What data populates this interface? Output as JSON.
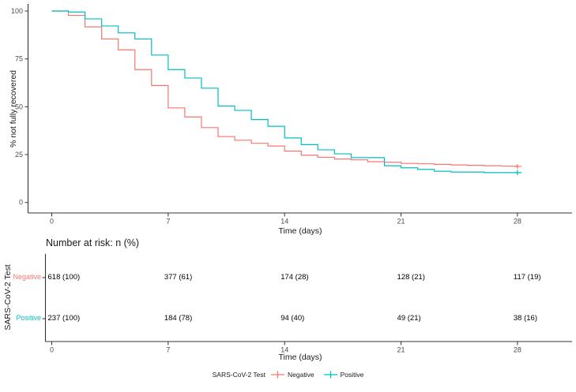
{
  "chart_data": [
    {
      "type": "line",
      "subtype": "kaplan-meier-step",
      "title": "",
      "xlabel": "Time (days)",
      "ylabel": "% not fully recovered",
      "x_ticks": [
        0,
        7,
        14,
        21,
        28
      ],
      "y_ticks": [
        0,
        25,
        50,
        75,
        100
      ],
      "xlim": [
        0,
        31.3
      ],
      "ylim": [
        0,
        100
      ],
      "grid": "off",
      "legend_position": "bottom",
      "series": [
        {
          "name": "Negative",
          "color": "#F8766D",
          "points": [
            [
              0,
              100
            ],
            [
              1,
              97.7
            ],
            [
              2,
              91.7
            ],
            [
              3,
              85.4
            ],
            [
              4,
              79.7
            ],
            [
              5,
              69.4
            ],
            [
              6,
              61.1
            ],
            [
              7,
              49.4
            ],
            [
              8,
              44.7
            ],
            [
              9,
              39.1
            ],
            [
              10,
              34.4
            ],
            [
              11,
              32.5
            ],
            [
              12,
              30.9
            ],
            [
              13,
              29.5
            ],
            [
              14,
              26.8
            ],
            [
              15,
              24.7
            ],
            [
              16,
              23.6
            ],
            [
              17,
              22.7
            ],
            [
              18,
              22.3
            ],
            [
              19,
              21.3
            ],
            [
              20,
              21.0
            ],
            [
              21,
              20.4
            ],
            [
              22,
              20.2
            ],
            [
              23,
              19.9
            ],
            [
              24,
              19.6
            ],
            [
              25,
              19.4
            ],
            [
              26,
              19.2
            ],
            [
              27,
              19.0
            ],
            [
              28,
              18.8
            ]
          ],
          "censor_marks": [
            [
              28,
              18.8
            ]
          ]
        },
        {
          "name": "Positive",
          "color": "#00BFC4",
          "points": [
            [
              0,
              100
            ],
            [
              1,
              99.5
            ],
            [
              2,
              95.9
            ],
            [
              3,
              92.2
            ],
            [
              4,
              88.6
            ],
            [
              5,
              85.4
            ],
            [
              6,
              77.0
            ],
            [
              7,
              69.4
            ],
            [
              8,
              65.0
            ],
            [
              9,
              59.7
            ],
            [
              10,
              50.4
            ],
            [
              11,
              48.1
            ],
            [
              12,
              43.3
            ],
            [
              13,
              39.8
            ],
            [
              14,
              33.7
            ],
            [
              15,
              30.2
            ],
            [
              16,
              27.5
            ],
            [
              17,
              25.4
            ],
            [
              18,
              23.4
            ],
            [
              20,
              19.2
            ],
            [
              21,
              18.1
            ],
            [
              22,
              17.3
            ],
            [
              23,
              16.3
            ],
            [
              24,
              15.9
            ],
            [
              26,
              15.6
            ],
            [
              28,
              15.6
            ]
          ],
          "censor_marks": [
            [
              28,
              15.6
            ]
          ]
        }
      ]
    },
    {
      "type": "table",
      "title": "Number at risk: n (%)",
      "ylabel": "SARS-CoV-2 Test",
      "xlabel": "Time (days)",
      "x_ticks": [
        0,
        7,
        14,
        21,
        28
      ],
      "rows": [
        {
          "label": "Negative",
          "color": "#F8766D",
          "values": [
            "618 (100)",
            "377 (61)",
            "174 (28)",
            "128 (21)",
            "117 (19)"
          ]
        },
        {
          "label": "Positive",
          "color": "#00BFC4",
          "values": [
            "237 (100)",
            "184 (78)",
            "94 (40)",
            "49 (21)",
            "38 (16)"
          ]
        }
      ]
    }
  ],
  "legend": {
    "title": "SARS-CoV-2 Test",
    "items": [
      {
        "label": "Negative",
        "color": "#F8766D"
      },
      {
        "label": "Positive",
        "color": "#00BFC4"
      }
    ]
  },
  "style_colors": {
    "axis_line": "#333333",
    "tick_text": "#4d4d4d",
    "negative": "#F8766D",
    "positive": "#00BFC4"
  }
}
